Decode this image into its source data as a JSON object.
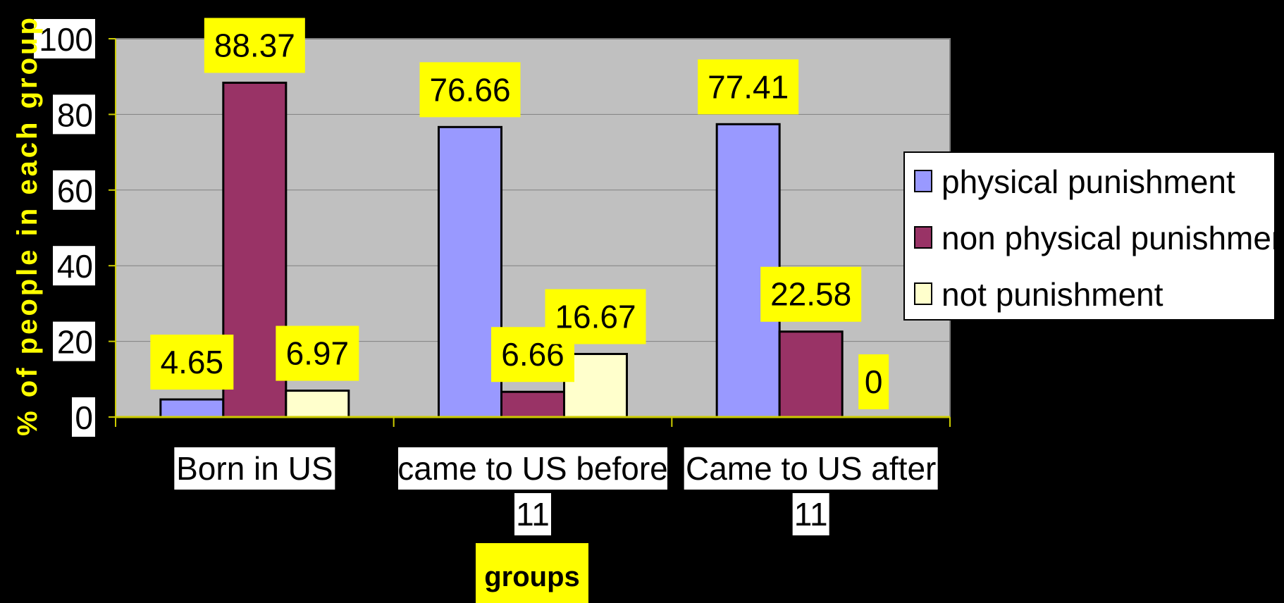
{
  "chart_data": {
    "type": "bar",
    "title": "",
    "xlabel": "groups",
    "ylabel": "% of people in each group",
    "ylim": [
      0,
      100
    ],
    "yticks": [
      "0",
      "20",
      "40",
      "60",
      "80",
      "100"
    ],
    "categories": [
      [
        "Born in US"
      ],
      [
        "came to US before",
        "11"
      ],
      [
        "Came to US after",
        "11"
      ]
    ],
    "series": [
      {
        "name": "physical punishment",
        "values": [
          4.65,
          76.66,
          77.41
        ],
        "labels": [
          "4.65",
          "76.66",
          "77.41"
        ]
      },
      {
        "name": "non physical punishment",
        "values": [
          88.37,
          6.66,
          22.58
        ],
        "labels": [
          "88.37",
          "6.66",
          "22.58"
        ]
      },
      {
        "name": "not punishment",
        "values": [
          6.97,
          16.67,
          0
        ],
        "labels": [
          "6.97",
          "16.67",
          "0"
        ]
      }
    ],
    "grid": true,
    "legend_position": "right",
    "colors": {
      "background": "#000000",
      "plot_area": "#c0c0c0",
      "series": [
        "#9999ff",
        "#993366",
        "#ffffcc"
      ],
      "label_bg": "#ffff00",
      "tick_bg": "#ffffff",
      "axis_title": "#ffff00",
      "xlabel_bg": "#ffff00",
      "axis_line": "#cccc00"
    }
  }
}
